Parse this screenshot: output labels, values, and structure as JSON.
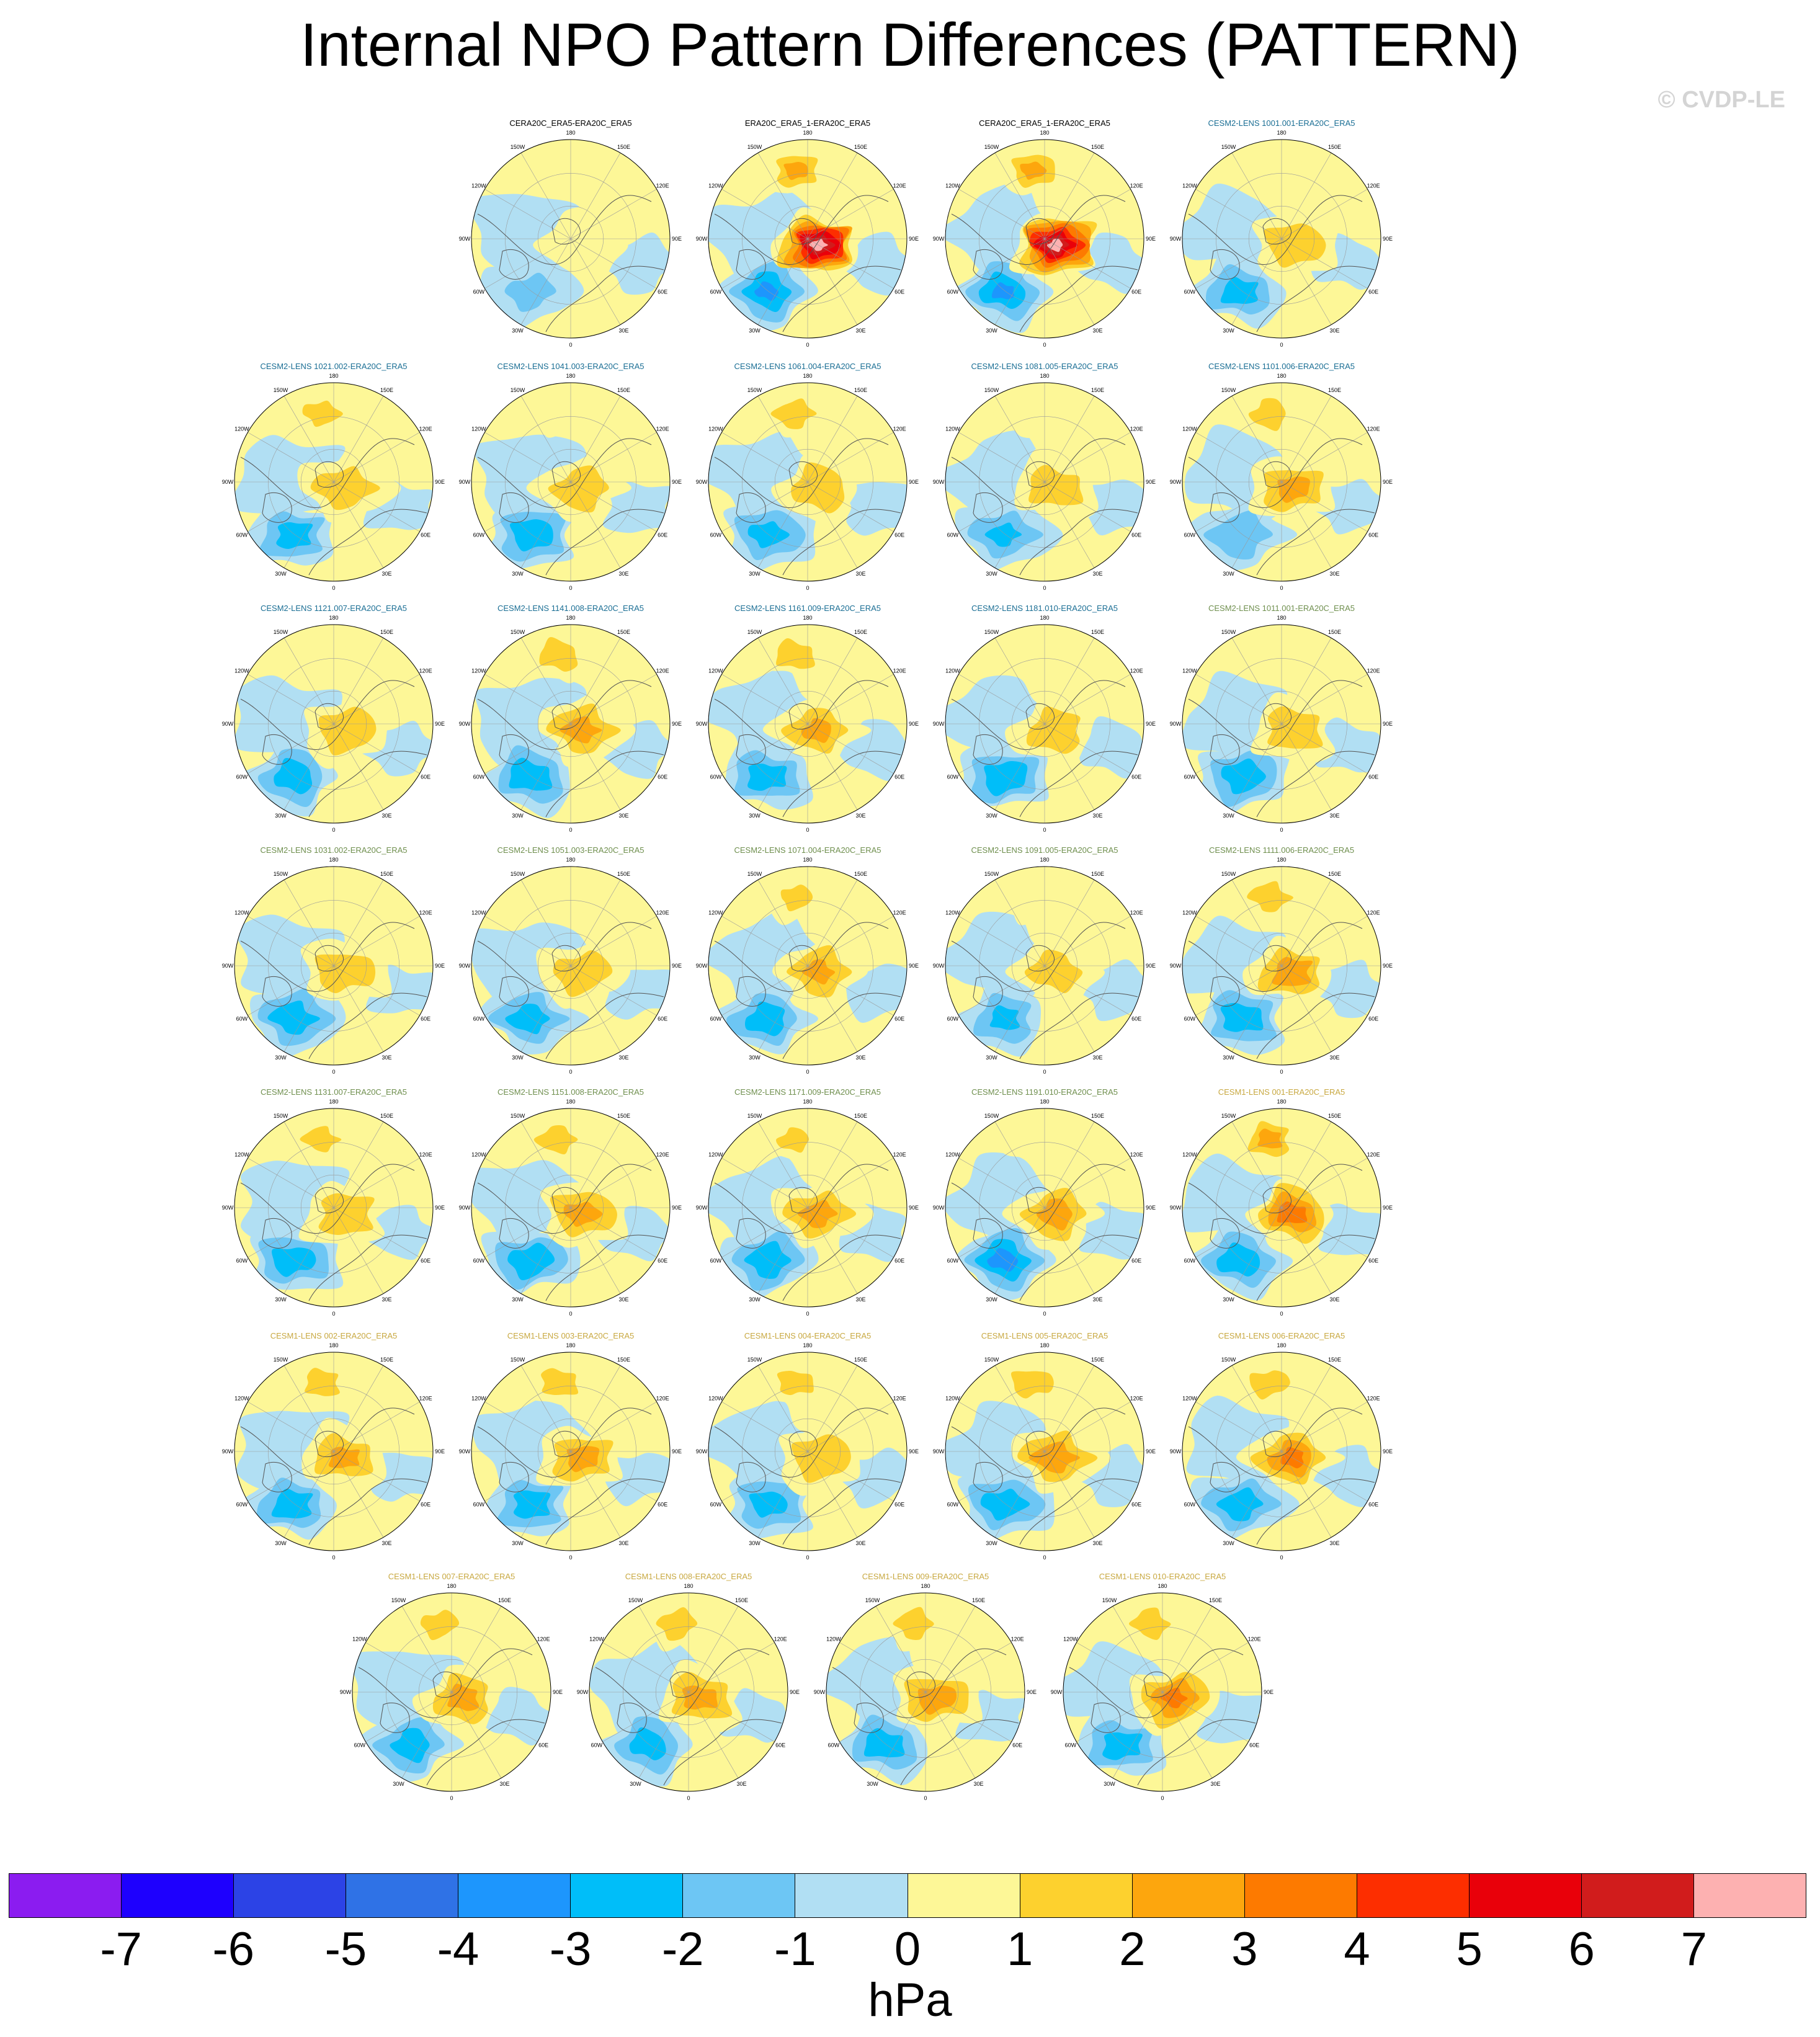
{
  "title": "Internal NPO Pattern Differences (PATTERN)",
  "copyright": "© CVDP-LE",
  "units_label": "hPa",
  "colors": {
    "obs_title": "#000000",
    "cesm2_1001_title": "#1a6e94",
    "cesm2_smbb_title": "#6f8f4e",
    "cesm1_title": "#c8a840",
    "coast": "#555555",
    "grid": "#9a9a9a"
  },
  "chart_data": {
    "type": "heatmap",
    "field": "Internal NPO pattern difference (polar stereographic, Northern Hemisphere)",
    "units": "hPa",
    "contour_levels": [
      -7,
      -6,
      -5,
      -4,
      -3,
      -2,
      -1,
      0,
      1,
      2,
      3,
      4,
      5,
      6,
      7
    ],
    "colorbar_colors": [
      "#8b1cf0",
      "#1e00fe",
      "#2c43e6",
      "#2f72e6",
      "#1d96fd",
      "#00bef9",
      "#6dc6f4",
      "#b1dff3",
      "#fdf797",
      "#fdd12e",
      "#fda60d",
      "#fd7a00",
      "#fd2e00",
      "#e9000a",
      "#d11c1c",
      "#fdb1b1"
    ],
    "colorbar_labels": [
      "-7",
      "-6",
      "-5",
      "-4",
      "-3",
      "-2",
      "-1",
      "0",
      "1",
      "2",
      "3",
      "4",
      "5",
      "6",
      "7"
    ],
    "map_labels": {
      "lon_top": "180",
      "lon_bottom": "0",
      "lon_150w": "150W",
      "lon_150e": "150E",
      "lon_120w": "120W",
      "lon_120e": "120E",
      "lon_90w": "90W",
      "lon_90e": "90E",
      "lon_60w": "60W",
      "lon_60e": "60E",
      "lon_30w": "30W",
      "lon_30e": "30E"
    },
    "panels": [
      {
        "title": "CERA20C_ERA5-ERA20C_ERA5",
        "group": "obs",
        "peak_pos": 0.3,
        "peak_neg": -1.0,
        "peak_pos2": 0.4
      },
      {
        "title": "ERA20C_ERA5_1-ERA20C_ERA5",
        "group": "obs",
        "peak_pos": 7.5,
        "peak_neg": -3.0,
        "peak_pos2": 2.2
      },
      {
        "title": "CERA20C_ERA5_1-ERA20C_ERA5",
        "group": "obs",
        "peak_pos": 7.5,
        "peak_neg": -3.0,
        "peak_pos2": 2.2
      },
      {
        "title": "CESM2-LENS 1001.001-ERA20C_ERA5",
        "group": "cesm2a",
        "peak_pos": 1.8,
        "peak_neg": -2.4,
        "peak_pos2": 0.8
      },
      {
        "title": "CESM2-LENS 1021.002-ERA20C_ERA5",
        "group": "cesm2a",
        "peak_pos": 1.8,
        "peak_neg": -2.3,
        "peak_pos2": 1.2
      },
      {
        "title": "CESM2-LENS 1041.003-ERA20C_ERA5",
        "group": "cesm2a",
        "peak_pos": 1.8,
        "peak_neg": -2.6,
        "peak_pos2": 0.8
      },
      {
        "title": "CESM2-LENS 1061.004-ERA20C_ERA5",
        "group": "cesm2a",
        "peak_pos": 1.9,
        "peak_neg": -2.2,
        "peak_pos2": 1.7
      },
      {
        "title": "CESM2-LENS 1081.005-ERA20C_ERA5",
        "group": "cesm2a",
        "peak_pos": 1.7,
        "peak_neg": -2.0,
        "peak_pos2": 0.5
      },
      {
        "title": "CESM2-LENS 1101.006-ERA20C_ERA5",
        "group": "cesm2a",
        "peak_pos": 2.2,
        "peak_neg": -1.9,
        "peak_pos2": 1.6
      },
      {
        "title": "CESM2-LENS 1121.007-ERA20C_ERA5",
        "group": "cesm2a",
        "peak_pos": 1.8,
        "peak_neg": -2.6,
        "peak_pos2": 0.8
      },
      {
        "title": "CESM2-LENS 1141.008-ERA20C_ERA5",
        "group": "cesm2a",
        "peak_pos": 2.3,
        "peak_neg": -2.8,
        "peak_pos2": 1.9
      },
      {
        "title": "CESM2-LENS 1161.009-ERA20C_ERA5",
        "group": "cesm2a",
        "peak_pos": 2.1,
        "peak_neg": -2.5,
        "peak_pos2": 1.8
      },
      {
        "title": "CESM2-LENS 1181.010-ERA20C_ERA5",
        "group": "cesm2a",
        "peak_pos": 1.9,
        "peak_neg": -2.8,
        "peak_pos2": 0.9
      },
      {
        "title": "CESM2-LENS 1011.001-ERA20C_ERA5",
        "group": "cesm2b",
        "peak_pos": 1.8,
        "peak_neg": -2.6,
        "peak_pos2": 0.8
      },
      {
        "title": "CESM2-LENS 1031.002-ERA20C_ERA5",
        "group": "cesm2b",
        "peak_pos": 1.8,
        "peak_neg": -2.7,
        "peak_pos2": 0.9
      },
      {
        "title": "CESM2-LENS 1051.003-ERA20C_ERA5",
        "group": "cesm2b",
        "peak_pos": 1.7,
        "peak_neg": -2.5,
        "peak_pos2": 0.7
      },
      {
        "title": "CESM2-LENS 1071.004-ERA20C_ERA5",
        "group": "cesm2b",
        "peak_pos": 2.0,
        "peak_neg": -2.7,
        "peak_pos2": 1.0
      },
      {
        "title": "CESM2-LENS 1091.005-ERA20C_ERA5",
        "group": "cesm2b",
        "peak_pos": 1.5,
        "peak_neg": -2.0,
        "peak_pos2": 0.6
      },
      {
        "title": "CESM2-LENS 1111.006-ERA20C_ERA5",
        "group": "cesm2b",
        "peak_pos": 2.7,
        "peak_neg": -2.6,
        "peak_pos2": 1.6
      },
      {
        "title": "CESM2-LENS 1131.007-ERA20C_ERA5",
        "group": "cesm2b",
        "peak_pos": 1.8,
        "peak_neg": -2.6,
        "peak_pos2": 1.2
      },
      {
        "title": "CESM2-LENS 1151.008-ERA20C_ERA5",
        "group": "cesm2b",
        "peak_pos": 2.2,
        "peak_neg": -2.8,
        "peak_pos2": 1.6
      },
      {
        "title": "CESM2-LENS 1171.009-ERA20C_ERA5",
        "group": "cesm2b",
        "peak_pos": 2.3,
        "peak_neg": -2.7,
        "peak_pos2": 1.1
      },
      {
        "title": "CESM2-LENS 1191.010-ERA20C_ERA5",
        "group": "cesm2b",
        "peak_pos": 2.4,
        "peak_neg": -3.4,
        "peak_pos2": 0.9
      },
      {
        "title": "CESM1-LENS 001-ERA20C_ERA5",
        "group": "cesm1",
        "peak_pos": 3.6,
        "peak_neg": -2.8,
        "peak_pos2": 2.4
      },
      {
        "title": "CESM1-LENS 002-ERA20C_ERA5",
        "group": "cesm1",
        "peak_pos": 2.1,
        "peak_neg": -2.6,
        "peak_pos2": 1.4
      },
      {
        "title": "CESM1-LENS 003-ERA20C_ERA5",
        "group": "cesm1",
        "peak_pos": 2.2,
        "peak_neg": -2.4,
        "peak_pos2": 1.5
      },
      {
        "title": "CESM1-LENS 004-ERA20C_ERA5",
        "group": "cesm1",
        "peak_pos": 1.9,
        "peak_neg": -2.2,
        "peak_pos2": 1.3
      },
      {
        "title": "CESM1-LENS 005-ERA20C_ERA5",
        "group": "cesm1",
        "peak_pos": 2.8,
        "peak_neg": -2.6,
        "peak_pos2": 1.8
      },
      {
        "title": "CESM1-LENS 006-ERA20C_ERA5",
        "group": "cesm1",
        "peak_pos": 3.2,
        "peak_neg": -2.6,
        "peak_pos2": 1.6
      },
      {
        "title": "CESM1-LENS 007-ERA20C_ERA5",
        "group": "cesm1",
        "peak_pos": 2.2,
        "peak_neg": -2.5,
        "peak_pos2": 1.4
      },
      {
        "title": "CESM1-LENS 008-ERA20C_ERA5",
        "group": "cesm1",
        "peak_pos": 2.3,
        "peak_neg": -2.4,
        "peak_pos2": 1.6
      },
      {
        "title": "CESM1-LENS 009-ERA20C_ERA5",
        "group": "cesm1",
        "peak_pos": 2.5,
        "peak_neg": -2.6,
        "peak_pos2": 1.5
      },
      {
        "title": "CESM1-LENS 010-ERA20C_ERA5",
        "group": "cesm1",
        "peak_pos": 3.1,
        "peak_neg": -2.5,
        "peak_pos2": 1.5
      }
    ]
  }
}
